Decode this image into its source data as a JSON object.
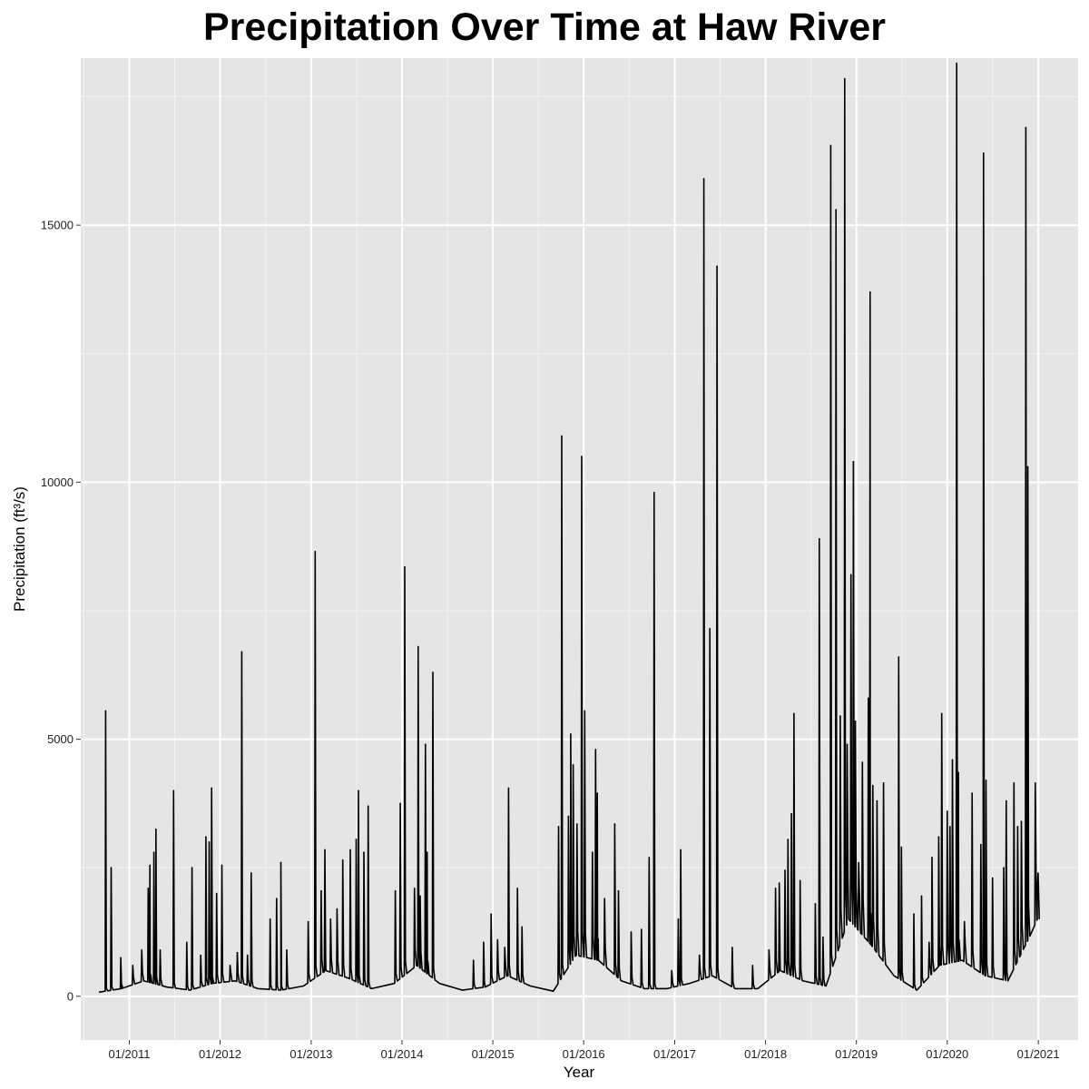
{
  "chart_data": {
    "type": "line",
    "title": "Precipitation Over Time at Haw River",
    "xlabel": "Year",
    "ylabel": "Precipitation (ft³/s)",
    "x_ticks": [
      "01/2011",
      "01/2012",
      "01/2013",
      "01/2014",
      "01/2015",
      "01/2016",
      "01/2017",
      "01/2018",
      "01/2019",
      "01/2020",
      "01/2021"
    ],
    "y_ticks": [
      0,
      5000,
      10000,
      15000
    ],
    "xlim": [
      "2010-06-20",
      "2021-06-10"
    ],
    "ylim": [
      -850,
      18250
    ],
    "grid": true,
    "background": "#e5e5e5",
    "line_color": "#000000",
    "baseline": [
      [
        "2010-09-01",
        80
      ],
      [
        "2010-12-01",
        150
      ],
      [
        "2011-03-01",
        300
      ],
      [
        "2011-06-01",
        180
      ],
      [
        "2011-09-01",
        120
      ],
      [
        "2011-12-01",
        250
      ],
      [
        "2012-03-01",
        300
      ],
      [
        "2012-06-01",
        150
      ],
      [
        "2012-09-01",
        120
      ],
      [
        "2012-12-01",
        200
      ],
      [
        "2013-03-01",
        500
      ],
      [
        "2013-06-01",
        350
      ],
      [
        "2013-09-01",
        150
      ],
      [
        "2013-12-01",
        250
      ],
      [
        "2014-03-01",
        600
      ],
      [
        "2014-06-01",
        250
      ],
      [
        "2014-09-01",
        120
      ],
      [
        "2014-12-01",
        180
      ],
      [
        "2015-03-01",
        400
      ],
      [
        "2015-06-01",
        200
      ],
      [
        "2015-09-01",
        100
      ],
      [
        "2015-12-01",
        800
      ],
      [
        "2016-03-01",
        700
      ],
      [
        "2016-06-01",
        300
      ],
      [
        "2016-09-01",
        150
      ],
      [
        "2016-12-01",
        150
      ],
      [
        "2017-03-01",
        250
      ],
      [
        "2017-06-01",
        400
      ],
      [
        "2017-09-01",
        150
      ],
      [
        "2017-12-01",
        150
      ],
      [
        "2018-03-01",
        500
      ],
      [
        "2018-06-01",
        300
      ],
      [
        "2018-09-01",
        200
      ],
      [
        "2018-12-01",
        1500
      ],
      [
        "2019-03-01",
        1000
      ],
      [
        "2019-06-01",
        400
      ],
      [
        "2019-09-01",
        120
      ],
      [
        "2019-12-01",
        600
      ],
      [
        "2020-03-01",
        700
      ],
      [
        "2020-06-01",
        400
      ],
      [
        "2020-09-01",
        300
      ],
      [
        "2020-12-01",
        1200
      ],
      [
        "2020-12-28",
        1500
      ]
    ],
    "peaks": [
      [
        "2010-09-28",
        5550
      ],
      [
        "2010-10-20",
        2500
      ],
      [
        "2010-11-28",
        750
      ],
      [
        "2011-01-15",
        600
      ],
      [
        "2011-02-20",
        900
      ],
      [
        "2011-03-18",
        2100
      ],
      [
        "2011-03-25",
        2550
      ],
      [
        "2011-04-10",
        2800
      ],
      [
        "2011-04-18",
        3250
      ],
      [
        "2011-05-05",
        900
      ],
      [
        "2011-06-28",
        4000
      ],
      [
        "2011-08-20",
        1050
      ],
      [
        "2011-09-10",
        2500
      ],
      [
        "2011-10-15",
        800
      ],
      [
        "2011-11-05",
        3100
      ],
      [
        "2011-11-18",
        3000
      ],
      [
        "2011-11-28",
        4050
      ],
      [
        "2011-12-18",
        2000
      ],
      [
        "2012-01-08",
        2550
      ],
      [
        "2012-02-10",
        600
      ],
      [
        "2012-03-10",
        850
      ],
      [
        "2012-03-28",
        6700
      ],
      [
        "2012-04-20",
        800
      ],
      [
        "2012-05-05",
        2400
      ],
      [
        "2012-07-20",
        1500
      ],
      [
        "2012-08-15",
        1900
      ],
      [
        "2012-09-01",
        2600
      ],
      [
        "2012-09-25",
        900
      ],
      [
        "2012-12-20",
        1450
      ],
      [
        "2013-01-17",
        8650
      ],
      [
        "2013-02-10",
        2050
      ],
      [
        "2013-02-25",
        2850
      ],
      [
        "2013-03-20",
        1500
      ],
      [
        "2013-04-15",
        1700
      ],
      [
        "2013-05-08",
        2650
      ],
      [
        "2013-06-07",
        2850
      ],
      [
        "2013-07-01",
        3050
      ],
      [
        "2013-07-10",
        4000
      ],
      [
        "2013-08-01",
        2800
      ],
      [
        "2013-08-18",
        3700
      ],
      [
        "2013-12-05",
        2050
      ],
      [
        "2013-12-25",
        3750
      ],
      [
        "2014-01-12",
        8350
      ],
      [
        "2014-02-20",
        2100
      ],
      [
        "2014-03-07",
        6800
      ],
      [
        "2014-03-15",
        1950
      ],
      [
        "2014-04-05",
        4900
      ],
      [
        "2014-04-12",
        2800
      ],
      [
        "2014-05-05",
        6300
      ],
      [
        "2014-10-15",
        700
      ],
      [
        "2014-11-25",
        1050
      ],
      [
        "2014-12-25",
        1600
      ],
      [
        "2015-01-20",
        1100
      ],
      [
        "2015-02-18",
        950
      ],
      [
        "2015-03-05",
        4050
      ],
      [
        "2015-04-10",
        2100
      ],
      [
        "2015-04-28",
        1350
      ],
      [
        "2015-09-22",
        3300
      ],
      [
        "2015-10-05",
        10900
      ],
      [
        "2015-11-01",
        3500
      ],
      [
        "2015-11-10",
        5100
      ],
      [
        "2015-11-20",
        4500
      ],
      [
        "2015-12-05",
        3350
      ],
      [
        "2015-12-24",
        10500
      ],
      [
        "2016-01-05",
        5550
      ],
      [
        "2016-02-05",
        2800
      ],
      [
        "2016-02-18",
        4800
      ],
      [
        "2016-02-25",
        3950
      ],
      [
        "2016-03-25",
        1900
      ],
      [
        "2016-05-05",
        3350
      ],
      [
        "2016-05-20",
        2050
      ],
      [
        "2016-07-10",
        1250
      ],
      [
        "2016-08-20",
        1300
      ],
      [
        "2016-09-20",
        2700
      ],
      [
        "2016-10-10",
        9800
      ],
      [
        "2016-12-20",
        500
      ],
      [
        "2017-01-15",
        1500
      ],
      [
        "2017-01-25",
        2850
      ],
      [
        "2017-04-10",
        800
      ],
      [
        "2017-04-28",
        15900
      ],
      [
        "2017-05-22",
        7150
      ],
      [
        "2017-06-20",
        14200
      ],
      [
        "2017-08-20",
        950
      ],
      [
        "2017-11-10",
        600
      ],
      [
        "2018-01-15",
        900
      ],
      [
        "2018-02-10",
        2100
      ],
      [
        "2018-02-25",
        2200
      ],
      [
        "2018-03-20",
        2450
      ],
      [
        "2018-04-01",
        3050
      ],
      [
        "2018-04-15",
        3550
      ],
      [
        "2018-04-25",
        5500
      ],
      [
        "2018-05-20",
        2250
      ],
      [
        "2018-07-20",
        1800
      ],
      [
        "2018-08-05",
        8900
      ],
      [
        "2018-08-20",
        1150
      ],
      [
        "2018-09-20",
        16550
      ],
      [
        "2018-10-11",
        15300
      ],
      [
        "2018-10-28",
        5450
      ],
      [
        "2018-11-15",
        17850
      ],
      [
        "2018-11-25",
        4900
      ],
      [
        "2018-12-10",
        8200
      ],
      [
        "2018-12-20",
        10400
      ],
      [
        "2018-12-28",
        5350
      ],
      [
        "2019-01-10",
        2600
      ],
      [
        "2019-01-25",
        4550
      ],
      [
        "2019-02-18",
        5800
      ],
      [
        "2019-02-25",
        13700
      ],
      [
        "2019-03-08",
        4100
      ],
      [
        "2019-03-25",
        3800
      ],
      [
        "2019-04-20",
        4150
      ],
      [
        "2019-06-20",
        6600
      ],
      [
        "2019-07-01",
        2900
      ],
      [
        "2019-08-20",
        1600
      ],
      [
        "2019-09-20",
        1950
      ],
      [
        "2019-10-20",
        1050
      ],
      [
        "2019-11-01",
        2700
      ],
      [
        "2019-11-28",
        3100
      ],
      [
        "2019-12-10",
        5500
      ],
      [
        "2020-01-01",
        3600
      ],
      [
        "2020-01-12",
        3300
      ],
      [
        "2020-01-22",
        4600
      ],
      [
        "2020-02-08",
        18150
      ],
      [
        "2020-02-15",
        4350
      ],
      [
        "2020-03-10",
        1450
      ],
      [
        "2020-04-10",
        3950
      ],
      [
        "2020-05-15",
        2950
      ],
      [
        "2020-05-26",
        16400
      ],
      [
        "2020-06-05",
        4200
      ],
      [
        "2020-07-01",
        2300
      ],
      [
        "2020-08-15",
        2500
      ],
      [
        "2020-08-25",
        3800
      ],
      [
        "2020-09-25",
        4150
      ],
      [
        "2020-10-10",
        3300
      ],
      [
        "2020-10-25",
        3400
      ],
      [
        "2020-11-12",
        16900
      ],
      [
        "2020-11-20",
        10300
      ],
      [
        "2020-12-20",
        4150
      ],
      [
        "2020-12-28",
        2050
      ]
    ]
  }
}
